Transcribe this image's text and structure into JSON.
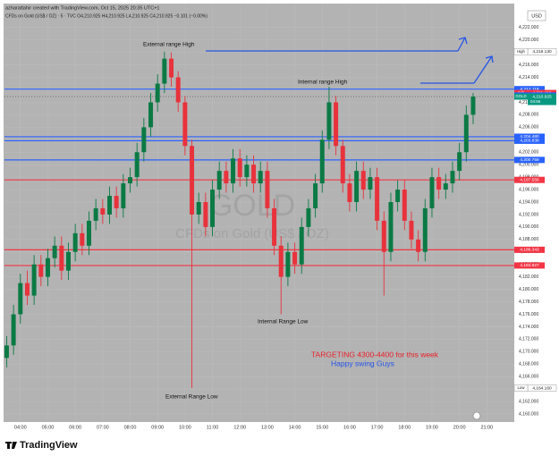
{
  "chart_data": {
    "type": "candlestick",
    "subtitle": "azharattahir created with TradingView.com, Oct 15, 2025 20:35 UTC+1",
    "title": "CFDs on Gold (US$ / OZ) · 5 · TVC  O4,210.925 H4,210.925 L4,210.925 C4,210.925 −0.101 (−0.00%)",
    "watermark": [
      "GOLD",
      "CFDs on Gold (US$ / OZ)"
    ],
    "currency": "USD",
    "brand": "TradingView",
    "up_color": "#0b7a45",
    "down_color": "#e8323c",
    "grid": true,
    "xlim": [
      3.42,
      22
    ],
    "xticks": [
      {
        "value": 4,
        "label": "04:00"
      },
      {
        "value": 5,
        "label": "05:00"
      },
      {
        "value": 6,
        "label": "06:00"
      },
      {
        "value": 7,
        "label": "07:00"
      },
      {
        "value": 8,
        "label": "08:00"
      },
      {
        "value": 9,
        "label": "09:00"
      },
      {
        "value": 10,
        "label": "10:00"
      },
      {
        "value": 11,
        "label": "11:00"
      },
      {
        "value": 12,
        "label": "12:00"
      },
      {
        "value": 13,
        "label": "13:00"
      },
      {
        "value": 14,
        "label": "14:00"
      },
      {
        "value": 15,
        "label": "15:00"
      },
      {
        "value": 16,
        "label": "16:00"
      },
      {
        "value": 17,
        "label": "17:00"
      },
      {
        "value": 18,
        "label": "18:00"
      },
      {
        "value": 19,
        "label": "19:00"
      },
      {
        "value": 20,
        "label": "20:00"
      },
      {
        "value": 21,
        "label": "21:00"
      }
    ],
    "ylim": [
      4159,
      4225.7
    ],
    "yticks": [
      {
        "value": 4160,
        "label": "4,160.000"
      },
      {
        "value": 4162,
        "label": "4,162.000"
      },
      {
        "value": 4164,
        "label": "4,164.000"
      },
      {
        "value": 4166,
        "label": "4,166.000"
      },
      {
        "value": 4168,
        "label": "4,168.000"
      },
      {
        "value": 4170,
        "label": "4,170.000"
      },
      {
        "value": 4172,
        "label": "4,172.000"
      },
      {
        "value": 4174,
        "label": "4,174.000"
      },
      {
        "value": 4176,
        "label": "4,176.000"
      },
      {
        "value": 4178,
        "label": "4,178.000"
      },
      {
        "value": 4180,
        "label": "4,180.000"
      },
      {
        "value": 4182,
        "label": "4,182.000"
      },
      {
        "value": 4184,
        "label": "4,184.000"
      },
      {
        "value": 4186,
        "label": "4,186.000"
      },
      {
        "value": 4188,
        "label": "4,188.000"
      },
      {
        "value": 4190,
        "label": "4,190.000"
      },
      {
        "value": 4192,
        "label": "4,192.000"
      },
      {
        "value": 4194,
        "label": "4,194.000"
      },
      {
        "value": 4196,
        "label": "4,196.000"
      },
      {
        "value": 4198,
        "label": "4,198.000"
      },
      {
        "value": 4200,
        "label": "4,200.000"
      },
      {
        "value": 4202,
        "label": "4,202.000"
      },
      {
        "value": 4204,
        "label": "4,204.000"
      },
      {
        "value": 4206,
        "label": "4,206.000"
      },
      {
        "value": 4208,
        "label": "4,208.000"
      },
      {
        "value": 4210,
        "label": "4,210.000"
      },
      {
        "value": 4212,
        "label": "4,212.000"
      },
      {
        "value": 4214,
        "label": "4,214.000"
      },
      {
        "value": 4216,
        "label": "4,216.000"
      },
      {
        "value": 4218,
        "label": "4,218.000"
      },
      {
        "value": 4220,
        "label": "4,220.000"
      },
      {
        "value": 4222,
        "label": "4,222.000"
      }
    ],
    "x": [
      3.5,
      3.75,
      4,
      4.25,
      4.5,
      4.75,
      5,
      5.25,
      5.5,
      5.75,
      6,
      6.25,
      6.5,
      6.75,
      7,
      7.25,
      7.5,
      7.75,
      8,
      8.25,
      8.5,
      8.75,
      9,
      9.25,
      9.5,
      9.75,
      10,
      10.25,
      10.5,
      10.75,
      11,
      11.25,
      11.5,
      11.75,
      12,
      12.25,
      12.5,
      12.75,
      13,
      13.25,
      13.5,
      13.75,
      14,
      14.25,
      14.5,
      14.75,
      15,
      15.25,
      15.5,
      15.75,
      16,
      16.25,
      16.5,
      16.75,
      17,
      17.25,
      17.5,
      17.75,
      18,
      18.25,
      18.5,
      18.75,
      19,
      19.25,
      19.5,
      19.75,
      20,
      20.25,
      20.5
    ],
    "open": [
      4169,
      4171,
      4176,
      4181,
      4179,
      4184,
      4182,
      4185,
      4187,
      4183,
      4186,
      4189,
      4187,
      4191,
      4193,
      4192,
      4195,
      4193,
      4197,
      4198,
      4202,
      4206,
      4210,
      4213,
      4217,
      4214,
      4210,
      4203,
      4192,
      4194,
      4190,
      4196,
      4199,
      4197,
      4201,
      4198,
      4200,
      4197,
      4199,
      4193,
      4187,
      4182,
      4186,
      4184,
      4190,
      4193,
      4197,
      4204,
      4210,
      4203,
      4197,
      4194,
      4199,
      4196,
      4198,
      4191,
      4186,
      4194,
      4196,
      4191,
      4188,
      4186,
      4193,
      4198,
      4196,
      4197,
      4199,
      4202,
      4208
    ],
    "high": [
      4172.5,
      4177.5,
      4182.5,
      4183,
      4185.5,
      4185.5,
      4186.5,
      4188.5,
      4188.5,
      4187.5,
      4190.5,
      4190.5,
      4192.5,
      4194.5,
      4194.5,
      4196.5,
      4196.5,
      4198.5,
      4199.5,
      4203.5,
      4207.5,
      4211.5,
      4214.5,
      4218.13,
      4218,
      4215,
      4211,
      4204,
      4195.5,
      4195.5,
      4197.5,
      4200.5,
      4200.5,
      4202.5,
      4202.5,
      4201.5,
      4201.5,
      4200.5,
      4200.5,
      4194.5,
      4188.5,
      4187.5,
      4187.5,
      4191.5,
      4194.5,
      4198.5,
      4205.5,
      4212.5,
      4211,
      4204,
      4198.5,
      4200.5,
      4200.5,
      4199.5,
      4199.5,
      4192.5,
      4195.5,
      4197.5,
      4197.5,
      4192.5,
      4189.5,
      4194.5,
      4199.5,
      4199.5,
      4198.5,
      4200.5,
      4203.5,
      4209.5,
      4211.5
    ],
    "low": [
      4167.5,
      4169.5,
      4174.5,
      4177.5,
      4177.5,
      4180.5,
      4180.5,
      4183.5,
      4181.5,
      4181.5,
      4184.5,
      4185.5,
      4185.5,
      4189.5,
      4190.5,
      4190.5,
      4191.5,
      4191.5,
      4195.5,
      4196.5,
      4200.5,
      4204.5,
      4208.5,
      4211.5,
      4212.5,
      4208.5,
      4201.5,
      4164.16,
      4190.5,
      4188.5,
      4188.5,
      4194.5,
      4195.5,
      4195.5,
      4196.5,
      4196.5,
      4195.5,
      4195.5,
      4191.5,
      4185.5,
      4176,
      4180.5,
      4182.5,
      4182.5,
      4188.5,
      4191.5,
      4195.5,
      4202.5,
      4201.5,
      4195.5,
      4192.5,
      4192.5,
      4194.5,
      4194.5,
      4189.5,
      4179,
      4184.5,
      4192.5,
      4189.5,
      4186.5,
      4184.5,
      4184.5,
      4191.5,
      4194.5,
      4194.5,
      4195.5,
      4197.5,
      4200.5,
      4206.5
    ],
    "close": [
      4171,
      4176,
      4181,
      4179,
      4184,
      4182,
      4185,
      4187,
      4183,
      4186,
      4189,
      4187,
      4191,
      4193,
      4192,
      4195,
      4193,
      4197,
      4198,
      4202,
      4206,
      4210,
      4213,
      4217,
      4214,
      4210,
      4203,
      4192,
      4194,
      4190,
      4196,
      4199,
      4197,
      4201,
      4198,
      4200,
      4197,
      4199,
      4193,
      4187,
      4182,
      4186,
      4184,
      4190,
      4193,
      4197,
      4204,
      4210,
      4203,
      4197,
      4194,
      4199,
      4196,
      4198,
      4191,
      4186,
      4194,
      4196,
      4191,
      4188,
      4186,
      4193,
      4198,
      4196,
      4197,
      4199,
      4202,
      4208,
      4210.925
    ],
    "levels": [
      {
        "value": 4212.118,
        "label": "4,212.118",
        "color": "#2962ff"
      },
      {
        "value": 4204.48,
        "label": "4,204.480",
        "color": "#2962ff"
      },
      {
        "value": 4203.838,
        "label": "4,203.838",
        "color": "#2962ff"
      },
      {
        "value": 4200.758,
        "label": "4,200.758",
        "color": "#2962ff"
      },
      {
        "value": 4197.556,
        "label": "4,197.556",
        "color": "#f23645"
      },
      {
        "value": 4186.343,
        "label": "4,186.343",
        "color": "#f23645"
      },
      {
        "value": 4183.827,
        "label": "4,183.827",
        "color": "#f23645"
      }
    ],
    "price_tags": [
      {
        "tag": "High",
        "value": 4218.13,
        "label": "4,218.130",
        "color": "#ffffff"
      },
      {
        "tag": "Ask",
        "value": 4211.49,
        "label": "4,211.490",
        "color": "#f23645"
      },
      {
        "tag": "Bid",
        "value": 4211.1,
        "label": "4,211.100",
        "color": "#2962ff"
      },
      {
        "tag": "GOLD",
        "value": 4210.925,
        "label": "4,210.925",
        "color": "#089981",
        "countdown": "04:56"
      },
      {
        "tag": "Low",
        "value": 4164.16,
        "label": "4,164.160",
        "color": "#ffffff"
      }
    ],
    "annotations": [
      {
        "text": "External range High",
        "color": "#111111"
      },
      {
        "text": "Internal range High",
        "color": "#111111"
      },
      {
        "text": "Internal Range Low",
        "color": "#111111"
      },
      {
        "text": "External Range Low",
        "color": "#111111"
      },
      {
        "text": "TARGETING 4300-4400 for this week",
        "color": "#e8202a"
      },
      {
        "text": "Happy swing Guys",
        "color": "#2454e6"
      }
    ]
  }
}
